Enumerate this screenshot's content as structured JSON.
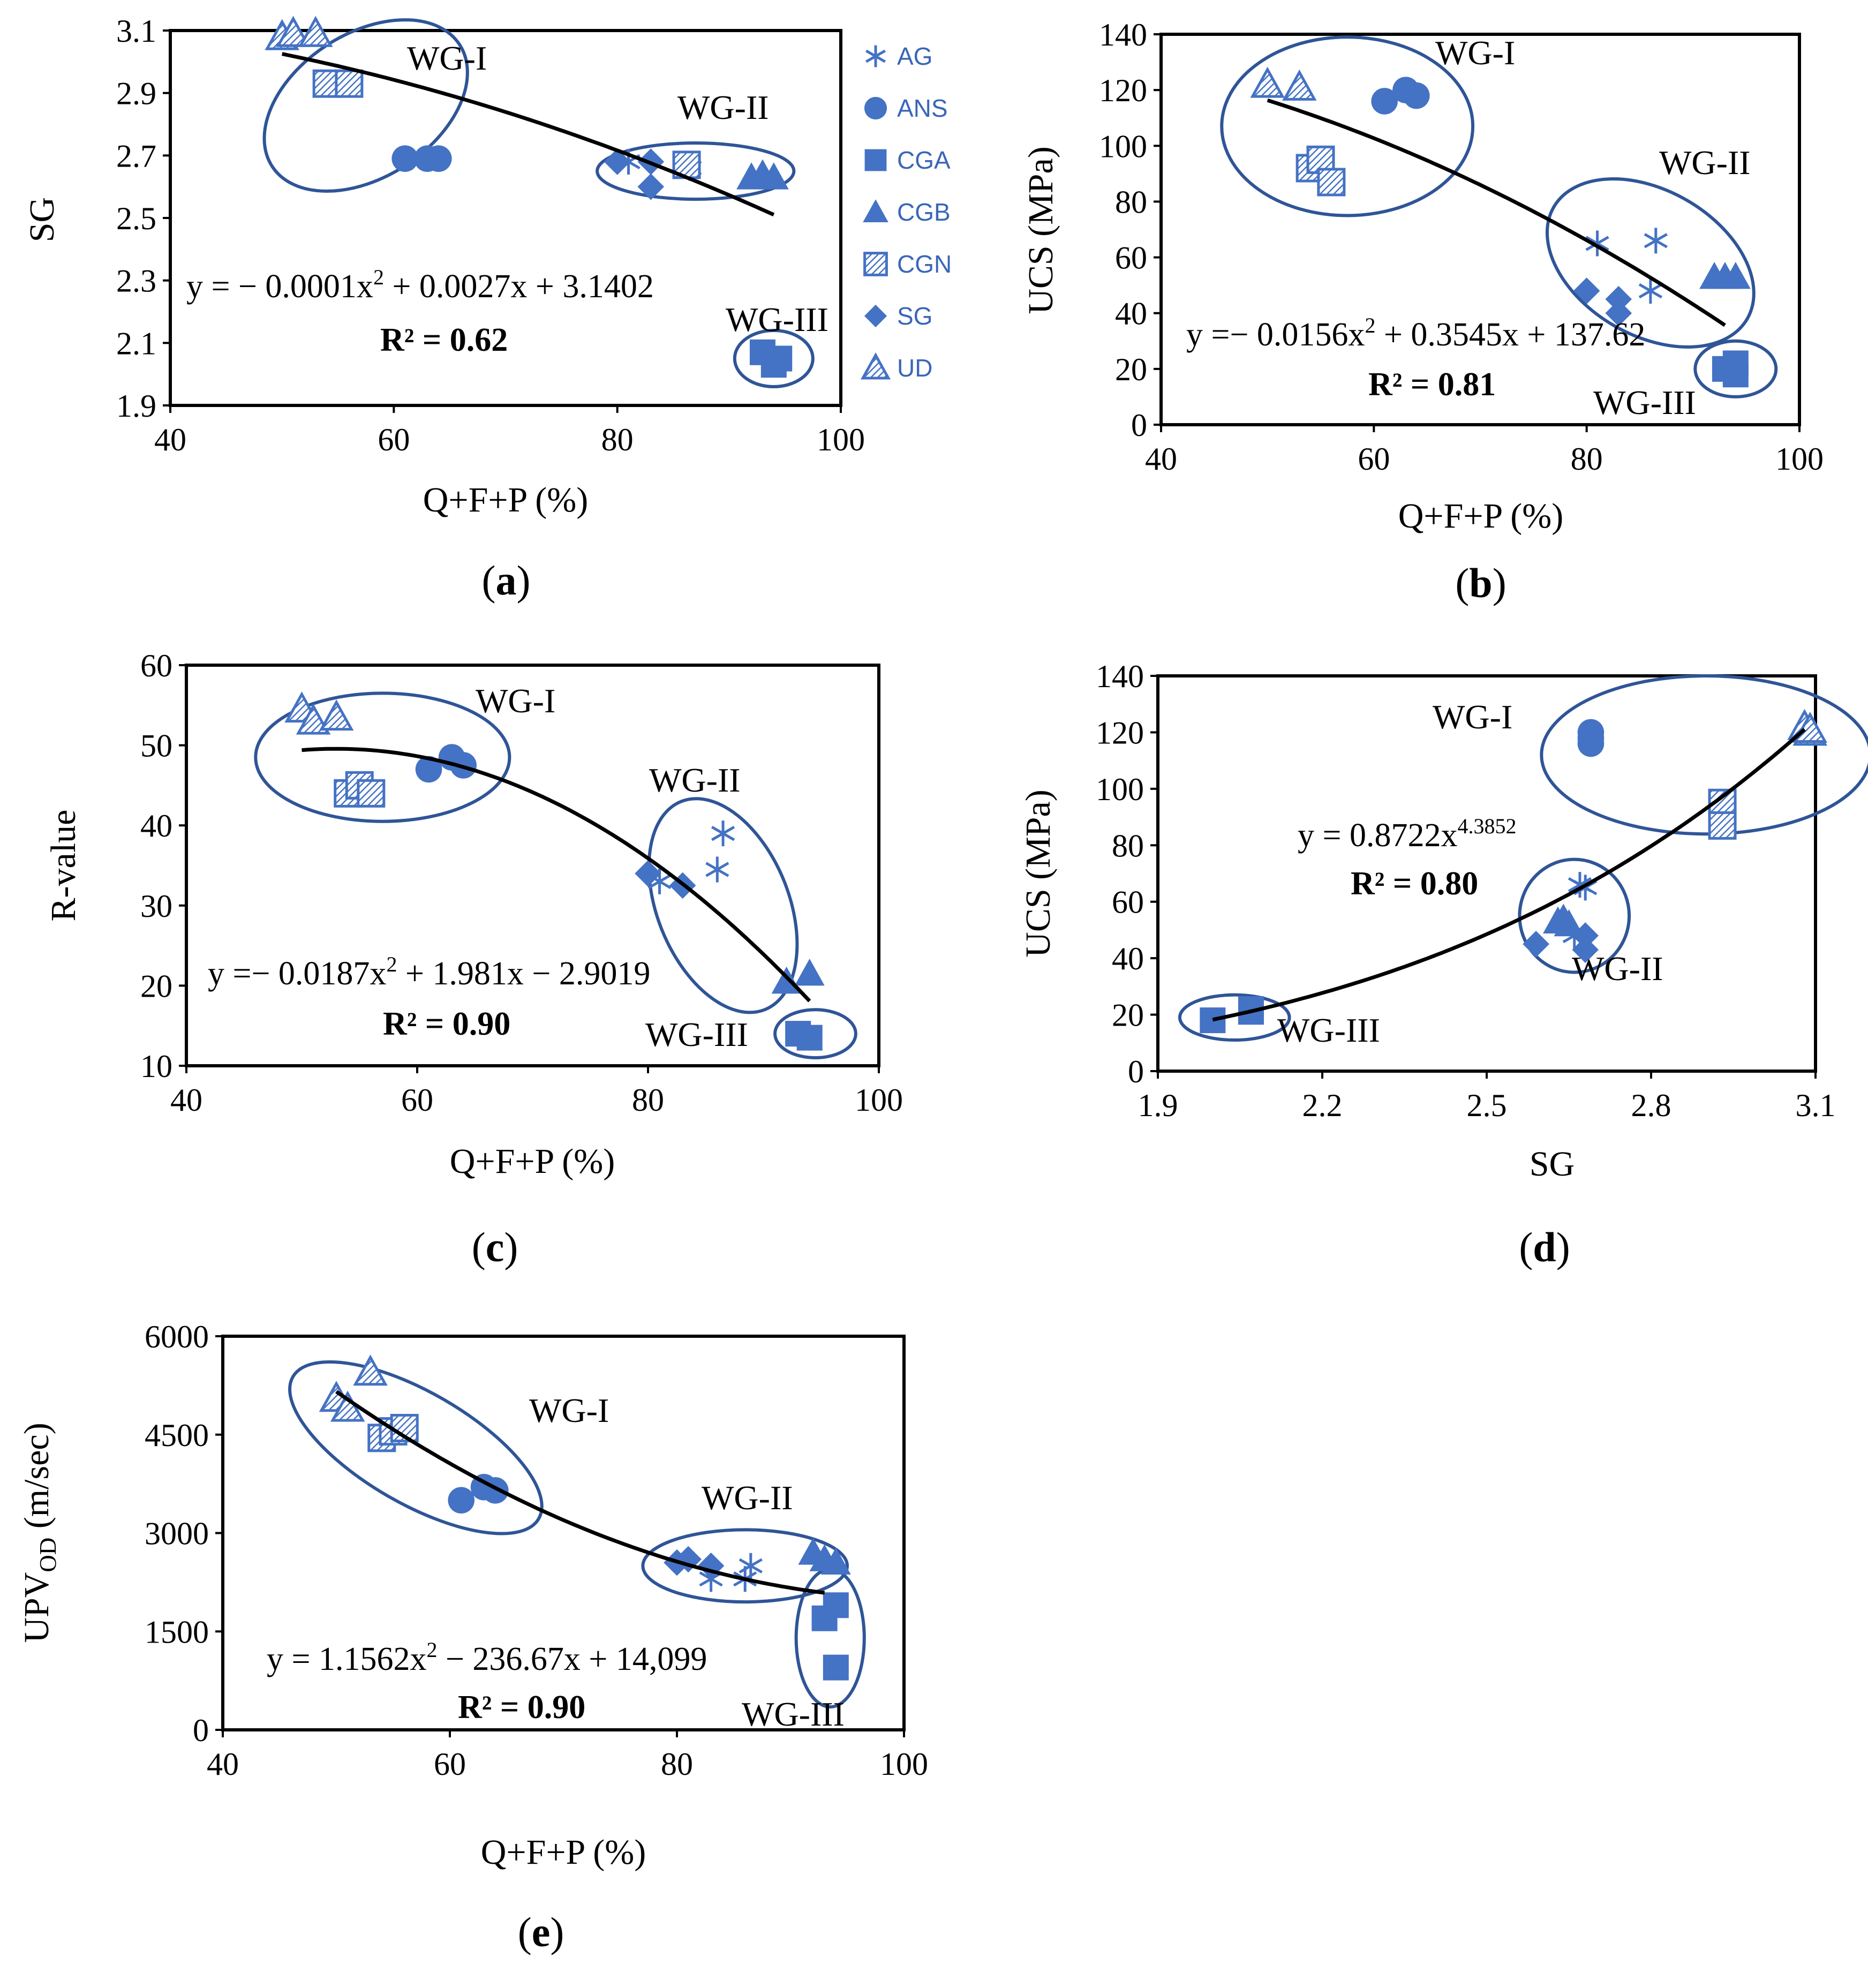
{
  "colors": {
    "marker": "#4472C4",
    "ellipse": "#2F5597",
    "trend": "#000000"
  },
  "legend": [
    {
      "code": "AG",
      "shape": "asterisk"
    },
    {
      "code": "ANS",
      "shape": "circle"
    },
    {
      "code": "CGA",
      "shape": "square"
    },
    {
      "code": "CGB",
      "shape": "triangle"
    },
    {
      "code": "CGN",
      "shape": "hatched-square"
    },
    {
      "code": "SG",
      "shape": "diamond"
    },
    {
      "code": "UD",
      "shape": "hatched-triangle"
    }
  ],
  "chart_data": [
    {
      "id": "a",
      "caption": "(a)",
      "type": "scatter",
      "xlabel": "Q+F+P (%)",
      "ylabel": "SG",
      "xlim": [
        40,
        100
      ],
      "ylim": [
        1.9,
        3.1
      ],
      "xticks": [
        40,
        60,
        80,
        100
      ],
      "yticks": [
        1.9,
        2.1,
        2.3,
        2.5,
        2.7,
        2.9,
        3.1
      ],
      "tick_decimals": 1,
      "equation": {
        "main": "y = − 0.0001x",
        "sup": "2",
        "rest": " + 0.0027x + 3.1402"
      },
      "r2": "R² = 0.62",
      "fit": {
        "kind": "poly",
        "coef": [
          -0.0001,
          0.0027,
          3.1402
        ],
        "range": [
          50,
          94
        ]
      },
      "groups": [
        {
          "label": "WG-I",
          "center": [
            57.5,
            2.86
          ],
          "radius": [
            10,
            0.23
          ],
          "angle": -33
        },
        {
          "label": "WG-II",
          "center": [
            87,
            2.65
          ],
          "radius": [
            8.8,
            0.09
          ],
          "angle": 0
        },
        {
          "label": "WG-III",
          "center": [
            94,
            2.05
          ],
          "radius": [
            3.5,
            0.09
          ],
          "angle": 0
        }
      ],
      "series": [
        {
          "name": "AG",
          "points": [
            [
              81,
              2.68
            ],
            [
              86,
              2.67
            ],
            [
              86.5,
              2.66
            ]
          ]
        },
        {
          "name": "ANS",
          "points": [
            [
              61,
              2.69
            ],
            [
              63,
              2.69
            ],
            [
              64,
              2.69
            ]
          ]
        },
        {
          "name": "CGA",
          "points": [
            [
              93,
              2.07
            ],
            [
              94,
              2.03
            ],
            [
              94.5,
              2.05
            ]
          ]
        },
        {
          "name": "CGB",
          "points": [
            [
              92,
              2.63
            ],
            [
              93,
              2.64
            ],
            [
              94,
              2.63
            ]
          ]
        },
        {
          "name": "CGN",
          "points": [
            [
              54,
              2.93
            ],
            [
              56,
              2.93
            ],
            [
              86.2,
              2.67
            ]
          ]
        },
        {
          "name": "SG",
          "points": [
            [
              80,
              2.68
            ],
            [
              83,
              2.68
            ],
            [
              83,
              2.6
            ]
          ]
        },
        {
          "name": "UD",
          "points": [
            [
              50,
              3.08
            ],
            [
              51,
              3.09
            ],
            [
              53,
              3.09
            ]
          ]
        }
      ]
    },
    {
      "id": "b",
      "caption": "(b)",
      "type": "scatter",
      "xlabel": "Q+F+P (%)",
      "ylabel": "UCS (MPa)",
      "xlim": [
        40,
        100
      ],
      "ylim": [
        0,
        140
      ],
      "xticks": [
        40,
        60,
        80,
        100
      ],
      "yticks": [
        0,
        20,
        40,
        60,
        80,
        100,
        120,
        140
      ],
      "tick_decimals": 0,
      "equation": {
        "main": "y =− 0.0156x",
        "sup": "2",
        "rest": " + 0.3545x + 137.62"
      },
      "r2": "R² = 0.81",
      "fit": {
        "kind": "poly",
        "coef": [
          -0.0156,
          0.3545,
          137.62
        ],
        "range": [
          50,
          93
        ]
      },
      "groups": [
        {
          "label": "WG-I",
          "center": [
            57.5,
            107
          ],
          "radius": [
            11.8,
            32
          ],
          "angle": 0
        },
        {
          "label": "WG-II",
          "center": [
            86,
            58
          ],
          "radius": [
            10.5,
            26
          ],
          "angle": 30
        },
        {
          "label": "WG-III",
          "center": [
            94,
            20
          ],
          "radius": [
            3.8,
            10
          ],
          "angle": 0
        }
      ],
      "series": [
        {
          "name": "AG",
          "points": [
            [
              81,
              65
            ],
            [
              86,
              48
            ],
            [
              86.5,
              66
            ]
          ]
        },
        {
          "name": "ANS",
          "points": [
            [
              61,
              116
            ],
            [
              63,
              120
            ],
            [
              64,
              118
            ]
          ]
        },
        {
          "name": "CGA",
          "points": [
            [
              93,
              20
            ],
            [
              94,
              18
            ],
            [
              94,
              22
            ]
          ]
        },
        {
          "name": "CGB",
          "points": [
            [
              92,
              53
            ],
            [
              93,
              53
            ],
            [
              94,
              53
            ]
          ]
        },
        {
          "name": "CGN",
          "points": [
            [
              54,
              92
            ],
            [
              55,
              95
            ],
            [
              56,
              87
            ]
          ]
        },
        {
          "name": "SG",
          "points": [
            [
              80,
              48
            ],
            [
              83,
              45
            ],
            [
              83,
              40
            ]
          ]
        },
        {
          "name": "UD",
          "points": [
            [
              50,
              122
            ],
            [
              53,
              121
            ]
          ]
        }
      ]
    },
    {
      "id": "c",
      "caption": "(c)",
      "type": "scatter",
      "xlabel": "Q+F+P (%)",
      "ylabel": "R-value",
      "xlim": [
        40,
        100
      ],
      "ylim": [
        10,
        60
      ],
      "xticks": [
        40,
        60,
        80,
        100
      ],
      "yticks": [
        10,
        20,
        30,
        40,
        50,
        60
      ],
      "tick_decimals": 0,
      "equation": {
        "main": "y =− 0.0187x",
        "sup": "2",
        "rest": " + 1.981x − 2.9019"
      },
      "r2": "R² = 0.90",
      "fit": {
        "kind": "poly",
        "coef": [
          -0.0187,
          1.981,
          -2.9019
        ],
        "range": [
          50,
          94
        ]
      },
      "groups": [
        {
          "label": "WG-I",
          "center": [
            57,
            48.5
          ],
          "radius": [
            11,
            8
          ],
          "angle": 0
        },
        {
          "label": "WG-II",
          "center": [
            86.5,
            30
          ],
          "radius": [
            5.7,
            14
          ],
          "angle": -22
        },
        {
          "label": "WG-III",
          "center": [
            94.5,
            14
          ],
          "radius": [
            3.5,
            3
          ],
          "angle": 0
        }
      ],
      "series": [
        {
          "name": "AG",
          "points": [
            [
              81,
              33
            ],
            [
              86,
              34.5
            ],
            [
              86.5,
              39
            ]
          ]
        },
        {
          "name": "ANS",
          "points": [
            [
              61,
              47
            ],
            [
              63,
              48.5
            ],
            [
              64,
              47.5
            ]
          ]
        },
        {
          "name": "CGA",
          "points": [
            [
              93,
              14
            ],
            [
              94,
              13.5
            ]
          ]
        },
        {
          "name": "CGB",
          "points": [
            [
              92,
              20.5
            ],
            [
              94,
              21.5
            ]
          ]
        },
        {
          "name": "CGN",
          "points": [
            [
              54,
              44
            ],
            [
              55,
              45
            ],
            [
              56,
              44
            ]
          ]
        },
        {
          "name": "SG",
          "points": [
            [
              80,
              34
            ],
            [
              83,
              32.5
            ]
          ]
        },
        {
          "name": "UD",
          "points": [
            [
              50,
              54.5
            ],
            [
              51,
              53
            ],
            [
              53,
              53.5
            ]
          ]
        }
      ]
    },
    {
      "id": "d",
      "caption": "(d)",
      "type": "scatter",
      "xlabel": "SG",
      "ylabel": "UCS (MPa)",
      "xlim": [
        1.9,
        3.1
      ],
      "ylim": [
        0,
        140
      ],
      "xticks": [
        1.9,
        2.2,
        2.5,
        2.8,
        3.1
      ],
      "yticks": [
        0,
        20,
        40,
        60,
        80,
        100,
        120,
        140
      ],
      "tick_decimals": 0,
      "xtick_decimals": 1,
      "equation": {
        "main": "y = 0.8722x",
        "sup": "4.3852",
        "rest": ""
      },
      "r2": "R² = 0.80",
      "fit": {
        "kind": "power",
        "coef": [
          0.8722,
          4.3852
        ],
        "range": [
          2.0,
          3.08
        ]
      },
      "groups": [
        {
          "label": "WG-I",
          "center": [
            2.9,
            112
          ],
          "radius": [
            0.3,
            28
          ],
          "angle": 0
        },
        {
          "label": "WG-II",
          "center": [
            2.66,
            55
          ],
          "radius": [
            0.1,
            20
          ],
          "angle": 0
        },
        {
          "label": "WG-III",
          "center": [
            2.04,
            19
          ],
          "radius": [
            0.1,
            8
          ],
          "angle": 0
        }
      ],
      "series": [
        {
          "name": "AG",
          "points": [
            [
              2.68,
              65
            ],
            [
              2.67,
              66
            ],
            [
              2.66,
              48
            ]
          ]
        },
        {
          "name": "ANS",
          "points": [
            [
              2.69,
              116
            ],
            [
              2.69,
              118
            ],
            [
              2.69,
              120
            ]
          ]
        },
        {
          "name": "CGA",
          "points": [
            [
              2.0,
              18
            ],
            [
              2.07,
              21
            ],
            [
              2.07,
              22
            ]
          ]
        },
        {
          "name": "CGB",
          "points": [
            [
              2.63,
              53
            ],
            [
              2.64,
              54
            ],
            [
              2.65,
              52
            ]
          ]
        },
        {
          "name": "CGN",
          "points": [
            [
              2.93,
              92
            ],
            [
              2.93,
              95
            ],
            [
              2.93,
              87
            ]
          ]
        },
        {
          "name": "SG",
          "points": [
            [
              2.59,
              45
            ],
            [
              2.68,
              48
            ],
            [
              2.68,
              43
            ]
          ]
        },
        {
          "name": "UD",
          "points": [
            [
              3.08,
              122
            ],
            [
              3.09,
              120
            ],
            [
              3.09,
              121
            ]
          ]
        }
      ]
    },
    {
      "id": "e",
      "caption": "(e)",
      "type": "scatter",
      "xlabel": "Q+F+P (%)",
      "ylabel": "UPV",
      "ylabel_sub": "OD",
      "ylabel_rest": " (m/sec)",
      "xlim": [
        40,
        100
      ],
      "ylim": [
        0,
        6000
      ],
      "xticks": [
        40,
        60,
        80,
        100
      ],
      "yticks": [
        0,
        1500,
        3000,
        4500,
        6000
      ],
      "tick_decimals": 0,
      "equation": {
        "main": "y = 1.1562x",
        "sup": "2",
        "rest": " − 236.67x + 14,099"
      },
      "r2": "R² = 0.90",
      "fit": {
        "kind": "poly",
        "coef": [
          1.1562,
          -236.67,
          14099
        ],
        "range": [
          50,
          93
        ]
      },
      "groups": [
        {
          "label": "WG-I",
          "center": [
            57,
            4300
          ],
          "radius": [
            12.5,
            850
          ],
          "angle": 30
        },
        {
          "label": "WG-II",
          "center": [
            86,
            2500
          ],
          "radius": [
            9,
            550
          ],
          "angle": 0
        },
        {
          "label": "WG-III",
          "center": [
            93.5,
            1400
          ],
          "radius": [
            3,
            1050
          ],
          "angle": 0
        }
      ],
      "series": [
        {
          "name": "AG",
          "points": [
            [
              83,
              2300
            ],
            [
              86,
              2300
            ],
            [
              86.5,
              2500
            ]
          ]
        },
        {
          "name": "ANS",
          "points": [
            [
              61,
              3500
            ],
            [
              63,
              3700
            ],
            [
              64,
              3650
            ]
          ]
        },
        {
          "name": "CGA",
          "points": [
            [
              93,
              1700
            ],
            [
              94,
              1900
            ],
            [
              94,
              950
            ]
          ]
        },
        {
          "name": "CGB",
          "points": [
            [
              92,
              2700
            ],
            [
              93,
              2600
            ],
            [
              94,
              2550
            ]
          ]
        },
        {
          "name": "CGN",
          "points": [
            [
              54,
              4450
            ],
            [
              55,
              4550
            ],
            [
              56,
              4600
            ]
          ]
        },
        {
          "name": "SG",
          "points": [
            [
              80,
              2550
            ],
            [
              81,
              2600
            ],
            [
              83,
              2500
            ]
          ]
        },
        {
          "name": "UD",
          "points": [
            [
              50,
              5050
            ],
            [
              51,
              4900
            ],
            [
              53,
              5450
            ]
          ]
        }
      ]
    }
  ]
}
